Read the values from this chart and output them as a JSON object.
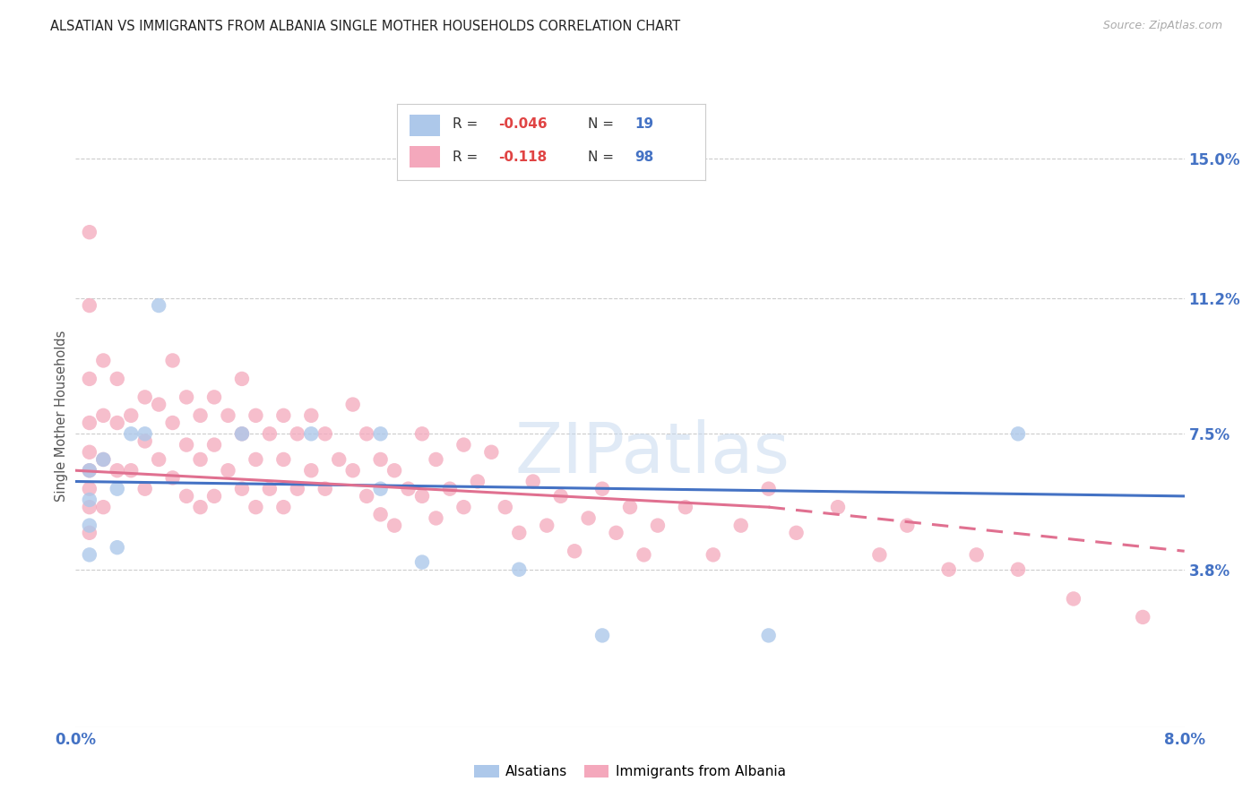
{
  "title": "ALSATIAN VS IMMIGRANTS FROM ALBANIA SINGLE MOTHER HOUSEHOLDS CORRELATION CHART",
  "source": "Source: ZipAtlas.com",
  "ylabel": "Single Mother Households",
  "ytick_labels": [
    "3.8%",
    "7.5%",
    "11.2%",
    "15.0%"
  ],
  "ytick_values": [
    0.038,
    0.075,
    0.112,
    0.15
  ],
  "xlim": [
    0.0,
    0.08
  ],
  "ylim": [
    -0.005,
    0.165
  ],
  "legend_labels": [
    "Alsatians",
    "Immigrants from Albania"
  ],
  "alsatian_color": "#adc8ea",
  "albania_color": "#f4a8bc",
  "alsatian_line_color": "#4472c4",
  "albania_line_color": "#e07090",
  "R_alsatian": "-0.046",
  "N_alsatian": "19",
  "R_albania": "-0.118",
  "N_albania": "98",
  "background_color": "#ffffff",
  "title_fontsize": 11,
  "alsatian_scatter_x": [
    0.001,
    0.001,
    0.001,
    0.001,
    0.002,
    0.003,
    0.003,
    0.004,
    0.005,
    0.006,
    0.012,
    0.017,
    0.022,
    0.022,
    0.025,
    0.032,
    0.038,
    0.05,
    0.068
  ],
  "alsatian_scatter_y": [
    0.065,
    0.057,
    0.05,
    0.042,
    0.068,
    0.06,
    0.044,
    0.075,
    0.075,
    0.11,
    0.075,
    0.075,
    0.075,
    0.06,
    0.04,
    0.038,
    0.02,
    0.02,
    0.075
  ],
  "albania_scatter_x": [
    0.001,
    0.001,
    0.001,
    0.001,
    0.001,
    0.001,
    0.001,
    0.001,
    0.001,
    0.002,
    0.002,
    0.002,
    0.002,
    0.003,
    0.003,
    0.003,
    0.004,
    0.004,
    0.005,
    0.005,
    0.005,
    0.006,
    0.006,
    0.007,
    0.007,
    0.007,
    0.008,
    0.008,
    0.008,
    0.009,
    0.009,
    0.009,
    0.01,
    0.01,
    0.01,
    0.011,
    0.011,
    0.012,
    0.012,
    0.012,
    0.013,
    0.013,
    0.013,
    0.014,
    0.014,
    0.015,
    0.015,
    0.015,
    0.016,
    0.016,
    0.017,
    0.017,
    0.018,
    0.018,
    0.019,
    0.02,
    0.02,
    0.021,
    0.021,
    0.022,
    0.022,
    0.023,
    0.023,
    0.024,
    0.025,
    0.025,
    0.026,
    0.026,
    0.027,
    0.028,
    0.028,
    0.029,
    0.03,
    0.031,
    0.032,
    0.033,
    0.034,
    0.035,
    0.036,
    0.037,
    0.038,
    0.039,
    0.04,
    0.041,
    0.042,
    0.044,
    0.046,
    0.048,
    0.05,
    0.052,
    0.055,
    0.058,
    0.06,
    0.063,
    0.065,
    0.068,
    0.072,
    0.077
  ],
  "albania_scatter_y": [
    0.13,
    0.11,
    0.09,
    0.078,
    0.07,
    0.065,
    0.06,
    0.055,
    0.048,
    0.095,
    0.08,
    0.068,
    0.055,
    0.09,
    0.078,
    0.065,
    0.08,
    0.065,
    0.085,
    0.073,
    0.06,
    0.083,
    0.068,
    0.095,
    0.078,
    0.063,
    0.085,
    0.072,
    0.058,
    0.08,
    0.068,
    0.055,
    0.085,
    0.072,
    0.058,
    0.08,
    0.065,
    0.09,
    0.075,
    0.06,
    0.08,
    0.068,
    0.055,
    0.075,
    0.06,
    0.08,
    0.068,
    0.055,
    0.075,
    0.06,
    0.08,
    0.065,
    0.075,
    0.06,
    0.068,
    0.083,
    0.065,
    0.075,
    0.058,
    0.068,
    0.053,
    0.065,
    0.05,
    0.06,
    0.075,
    0.058,
    0.068,
    0.052,
    0.06,
    0.072,
    0.055,
    0.062,
    0.07,
    0.055,
    0.048,
    0.062,
    0.05,
    0.058,
    0.043,
    0.052,
    0.06,
    0.048,
    0.055,
    0.042,
    0.05,
    0.055,
    0.042,
    0.05,
    0.06,
    0.048,
    0.055,
    0.042,
    0.05,
    0.038,
    0.042,
    0.038,
    0.03,
    0.025
  ],
  "alsatian_trend": [
    0.0,
    0.062,
    0.08,
    0.058
  ],
  "albania_trend_solid": [
    0.0,
    0.065,
    0.05,
    0.055
  ],
  "albania_trend_dashed": [
    0.05,
    0.055,
    0.08,
    0.043
  ]
}
